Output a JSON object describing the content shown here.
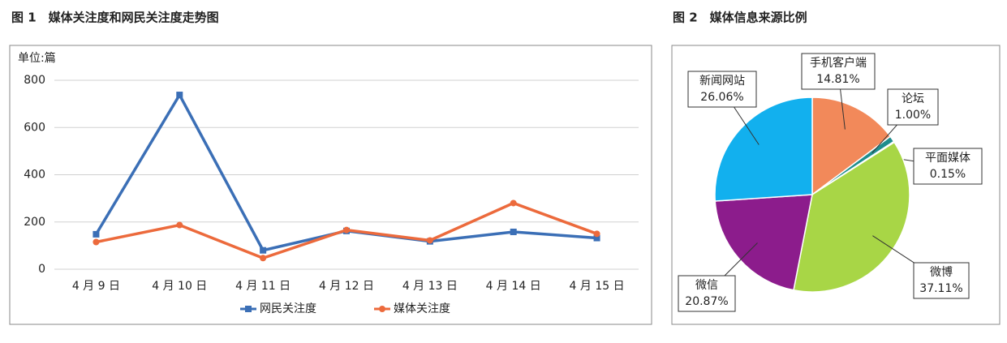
{
  "chart_data": [
    {
      "type": "line",
      "title": "图 1　媒体关注度和网民关注度走势图",
      "y_label": "单位:篇",
      "categories": [
        "4 月 9 日",
        "4 月 10 日",
        "4 月 11 日",
        "4 月 12 日",
        "4 月 13 日",
        "4 月 14 日",
        "4 月 15 日"
      ],
      "series": [
        {
          "name": "网民关注度",
          "color": "#3b6fb6",
          "values": [
            148,
            738,
            80,
            162,
            118,
            158,
            132
          ]
        },
        {
          "name": "媒体关注度",
          "color": "#ec6a3c",
          "values": [
            115,
            187,
            47,
            166,
            122,
            280,
            150
          ]
        }
      ],
      "ylim": [
        0,
        800
      ],
      "yticks": [
        0,
        200,
        400,
        600,
        800
      ],
      "grid": true,
      "legend": "bottom"
    },
    {
      "type": "pie",
      "title": "图 2　媒体信息来源比例",
      "categories": [
        "手机客户端",
        "论坛",
        "平面媒体",
        "微博",
        "微信",
        "新闻网站"
      ],
      "values": [
        14.81,
        1,
        0.15,
        37.11,
        20.87,
        26.06
      ],
      "value_labels": [
        "14.81%",
        "1.00%",
        "0.15%",
        "37.11%",
        "20.87%",
        "26.06%"
      ],
      "colors": [
        "#f2895a",
        "#1f8d8d",
        "#2e6fb0",
        "#a8d646",
        "#8c1c8c",
        "#12b0ee"
      ]
    }
  ]
}
